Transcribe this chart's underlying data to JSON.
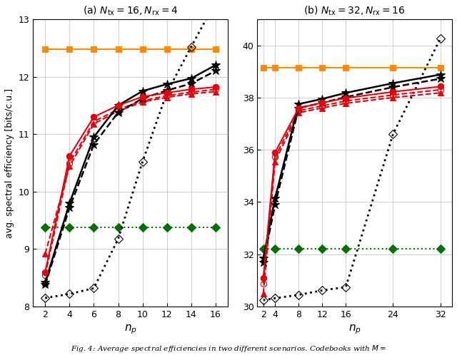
{
  "left": {
    "title": "(a) $N_{\\mathrm{tx}} = 16, N_{\\mathrm{rx}} = 4$",
    "x": [
      2,
      4,
      6,
      8,
      10,
      12,
      14,
      16
    ],
    "xlim": [
      1,
      17
    ],
    "xticks": [
      2,
      4,
      6,
      8,
      10,
      12,
      14,
      16
    ],
    "ylim": [
      8,
      13
    ],
    "yticks": [
      8,
      9,
      10,
      11,
      12,
      13
    ],
    "xlabel": "$n_p$",
    "ylabel": "avg. spectral efficiency [bits/c.u.]",
    "series": {
      "orange_square": {
        "y": [
          12.48,
          12.48,
          12.48,
          12.48,
          12.48,
          12.48,
          12.48,
          12.48
        ],
        "color": "#FF8C00",
        "marker": "s",
        "linestyle": "-",
        "linewidth": 1.5,
        "markersize": 6,
        "markerfacecolor": "#FF8C00",
        "zorder": 5
      },
      "black_star_solid": {
        "y": [
          8.42,
          9.8,
          10.95,
          11.5,
          11.75,
          11.87,
          11.97,
          12.2
        ],
        "color": "black",
        "marker": "*",
        "linestyle": "-",
        "linewidth": 1.8,
        "markersize": 9,
        "markerfacecolor": "black",
        "zorder": 8
      },
      "black_star_dashed": {
        "y": [
          8.38,
          9.72,
          10.82,
          11.38,
          11.62,
          11.76,
          11.88,
          12.1
        ],
        "color": "black",
        "marker": "*",
        "linestyle": "--",
        "linewidth": 1.8,
        "markersize": 9,
        "markerfacecolor": "black",
        "zorder": 7
      },
      "red_circle_solid": {
        "y": [
          8.6,
          10.62,
          11.3,
          11.5,
          11.65,
          11.72,
          11.78,
          11.82
        ],
        "color": "#E8000B",
        "marker": "o",
        "linestyle": "-",
        "linewidth": 1.5,
        "markersize": 6,
        "markerfacecolor": "#E8000B",
        "zorder": 9
      },
      "red_circle_dashed": {
        "y": [
          8.55,
          10.5,
          11.22,
          11.43,
          11.58,
          11.67,
          11.73,
          11.78
        ],
        "color": "#E8000B",
        "marker": "o",
        "linestyle": "--",
        "linewidth": 1.5,
        "markersize": 6,
        "markerfacecolor": "none",
        "zorder": 6
      },
      "red_triangle_dashed": {
        "y": [
          8.92,
          10.44,
          11.18,
          11.4,
          11.56,
          11.64,
          11.7,
          11.74
        ],
        "color": "#E8000B",
        "marker": "^",
        "linestyle": "--",
        "linewidth": 1.5,
        "markersize": 6,
        "markerfacecolor": "#E8000B",
        "zorder": 6
      },
      "green_diamond_dotted": {
        "y": [
          9.38,
          9.38,
          9.38,
          9.38,
          9.38,
          9.38,
          9.38,
          9.38
        ],
        "color": "#007000",
        "marker": "D",
        "linestyle": ":",
        "linewidth": 1.5,
        "markersize": 6,
        "markerfacecolor": "#007000",
        "zorder": 5
      },
      "black_diamond_dotted": {
        "x_override": [
          2,
          4,
          6,
          8,
          10,
          12,
          14,
          16
        ],
        "y_override": [
          8.15,
          8.22,
          8.32,
          9.18,
          10.52,
          11.72,
          12.52,
          13.3
        ],
        "color": "black",
        "marker": "D",
        "linestyle": ":",
        "linewidth": 2.0,
        "markersize": 6,
        "markerfacecolor": "none",
        "zorder": 5
      }
    }
  },
  "right": {
    "title": "(b) $N_{\\mathrm{tx}} = 32, N_{\\mathrm{rx}} = 16$",
    "x": [
      2,
      4,
      8,
      12,
      16,
      24,
      32
    ],
    "xlim": [
      1,
      34
    ],
    "xticks": [
      2,
      4,
      8,
      12,
      16,
      24,
      32
    ],
    "ylim": [
      30,
      41
    ],
    "yticks": [
      30,
      32,
      34,
      36,
      38,
      40
    ],
    "xlabel": "$n_p$",
    "ylabel": "",
    "series": {
      "orange_square": {
        "y": [
          39.15,
          39.15,
          39.15,
          39.15,
          39.15,
          39.15,
          39.15
        ],
        "color": "#FF8C00",
        "marker": "s",
        "linestyle": "-",
        "linewidth": 1.5,
        "markersize": 6,
        "markerfacecolor": "#FF8C00",
        "zorder": 5
      },
      "black_star_solid": {
        "y": [
          31.85,
          34.15,
          37.75,
          37.95,
          38.18,
          38.55,
          38.88
        ],
        "color": "black",
        "marker": "*",
        "linestyle": "-",
        "linewidth": 1.8,
        "markersize": 9,
        "markerfacecolor": "black",
        "zorder": 8
      },
      "black_star_dashed": {
        "y": [
          31.7,
          33.9,
          37.6,
          37.8,
          38.02,
          38.4,
          38.72
        ],
        "color": "black",
        "marker": "*",
        "linestyle": "--",
        "linewidth": 1.8,
        "markersize": 9,
        "markerfacecolor": "black",
        "zorder": 7
      },
      "red_circle_solid": {
        "y": [
          31.1,
          35.9,
          37.6,
          37.8,
          37.98,
          38.22,
          38.42
        ],
        "color": "#E8000B",
        "marker": "o",
        "linestyle": "-",
        "linewidth": 1.5,
        "markersize": 6,
        "markerfacecolor": "#E8000B",
        "zorder": 9
      },
      "red_circle_dashed": {
        "y": [
          30.88,
          35.72,
          37.5,
          37.68,
          37.87,
          38.1,
          38.3
        ],
        "color": "#E8000B",
        "marker": "o",
        "linestyle": "--",
        "linewidth": 1.5,
        "markersize": 6,
        "markerfacecolor": "none",
        "zorder": 6
      },
      "red_triangle_dashed": {
        "y": [
          30.5,
          35.55,
          37.42,
          37.6,
          37.78,
          38.0,
          38.18
        ],
        "color": "#E8000B",
        "marker": "^",
        "linestyle": "--",
        "linewidth": 1.5,
        "markersize": 6,
        "markerfacecolor": "#E8000B",
        "zorder": 6
      },
      "green_diamond_dotted": {
        "y": [
          32.22,
          32.22,
          32.22,
          32.22,
          32.22,
          32.22,
          32.22
        ],
        "color": "#007000",
        "marker": "D",
        "linestyle": ":",
        "linewidth": 1.5,
        "markersize": 6,
        "markerfacecolor": "#007000",
        "zorder": 5
      },
      "black_diamond_dotted": {
        "x_override": [
          2,
          4,
          8,
          12,
          16,
          24,
          32
        ],
        "y_override": [
          30.25,
          30.32,
          30.45,
          30.62,
          30.75,
          36.6,
          40.25
        ],
        "color": "black",
        "marker": "D",
        "linestyle": ":",
        "linewidth": 2.0,
        "markersize": 6,
        "markerfacecolor": "none",
        "zorder": 5
      }
    }
  },
  "caption": "Fig. 4: Average spectral efficiencies in two different scenarios. Codebooks with $M =$",
  "fig_width": 6.4,
  "fig_height": 4.98,
  "dpi": 100
}
